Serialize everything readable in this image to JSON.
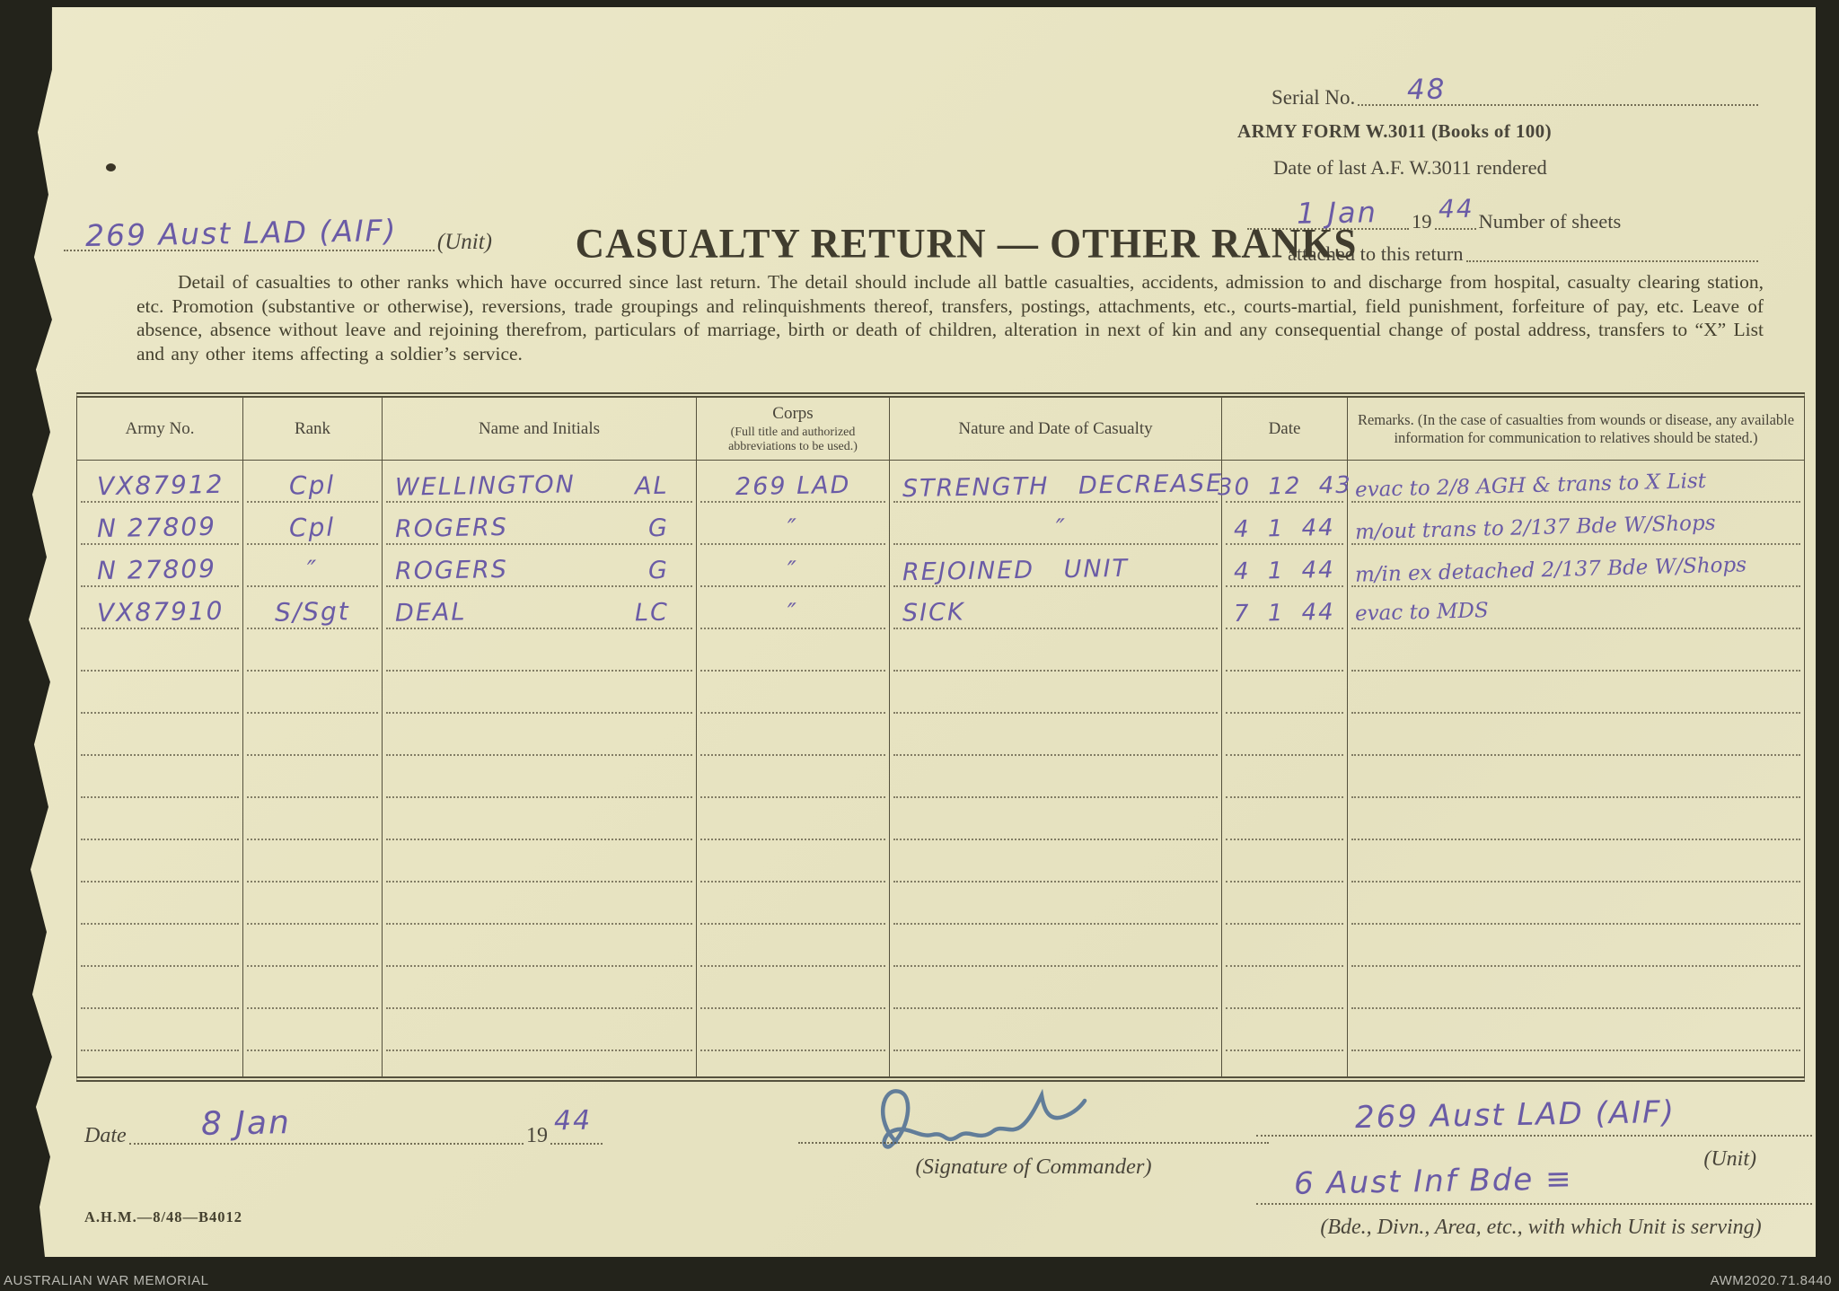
{
  "colors": {
    "paper": "#e8e4c2",
    "ink": "#49453a",
    "pencil": "#6a5ba6",
    "pen": "#4a6b92",
    "backdrop": "#23231b"
  },
  "top": {
    "serial_label": "Serial No.",
    "serial_value": "48",
    "form_line": "ARMY FORM W.3011 (Books of 100)",
    "rendered_label": "Date of last A.F. W.3011 rendered",
    "rendered_date": "1 Jan",
    "rendered_year_prefix": "19",
    "rendered_year": "44",
    "sheets_line1": "Number of sheets",
    "sheets_line2": "attached to this return",
    "unit_value": "269 Aust LAD (AIF)",
    "unit_label": "(Unit)",
    "title": "CASUALTY RETURN — OTHER RANKS"
  },
  "instructions": "Detail of casualties to other ranks which have occurred since last return.  The detail should include all battle casualties, accidents, admission to and discharge from hospital, casualty clearing station, etc.  Promotion (substantive or otherwise), reversions, trade groupings and relinquishments thereof, transfers, postings, attachments, etc., courts-martial, field punishment, forfeiture of pay, etc.  Leave of absence, absence without leave and rejoining therefrom, particulars of marriage, birth or death of children, alteration in next of kin and any consequential change of postal address, transfers to “X” List and any other items affecting a soldier’s service.",
  "table": {
    "headers": {
      "army_no": "Army No.",
      "rank": "Rank",
      "name": "Name and Initials",
      "corps_title": "Corps",
      "corps_sub": "(Full title and authorized abbreviations to be used.)",
      "nature": "Nature and Date of Casualty",
      "date": "Date",
      "remarks": "Remarks.  (In the case of casualties from wounds or disease, any available information for communi­cation to relatives should be stated.)"
    },
    "rows": [
      {
        "army_no": "VX87912",
        "rank": "Cpl",
        "name": "WELLINGTON",
        "initials": "AL",
        "corps": "269 LAD",
        "nature": "STRENGTH DECREASE",
        "date": "30 12 43",
        "remarks": "evac to 2/8 AGH & trans to X List"
      },
      {
        "army_no": "N 27809",
        "rank": "Cpl",
        "name": "ROGERS",
        "initials": "G",
        "corps": "″",
        "nature": "″",
        "date": "4 1 44",
        "remarks": "m/out trans to 2/137 Bde W/Shops"
      },
      {
        "army_no": "N 27809",
        "rank": "″",
        "name": "ROGERS",
        "initials": "G",
        "corps": "″",
        "nature": "REJOINED UNIT",
        "date": "4 1 44",
        "remarks": "m/in ex detached 2/137 Bde W/Shops"
      },
      {
        "army_no": "VX87910",
        "rank": "S/Sgt",
        "name": "DEAL",
        "initials": "LC",
        "corps": "″",
        "nature": "SICK",
        "date": "7 1 44",
        "remarks": "evac to MDS"
      }
    ],
    "empty_row_count": 10
  },
  "bottom": {
    "date_label": "Date",
    "date_value": "8 Jan",
    "year_prefix": "19",
    "year_value": "44",
    "signature_label": "(Signature of Commander)",
    "unit_value": "269 Aust LAD (AIF)",
    "unit_label": "(Unit)",
    "serving_value": "6 Aust Inf Bde ≡",
    "serving_label": "(Bde., Divn., Area, etc., with which Unit is serving)",
    "print_code": "A.H.M.—8/48—B4012"
  },
  "awm_footer": {
    "left": "AUSTRALIAN WAR MEMORIAL",
    "right": "AWM2020.71.8440"
  }
}
